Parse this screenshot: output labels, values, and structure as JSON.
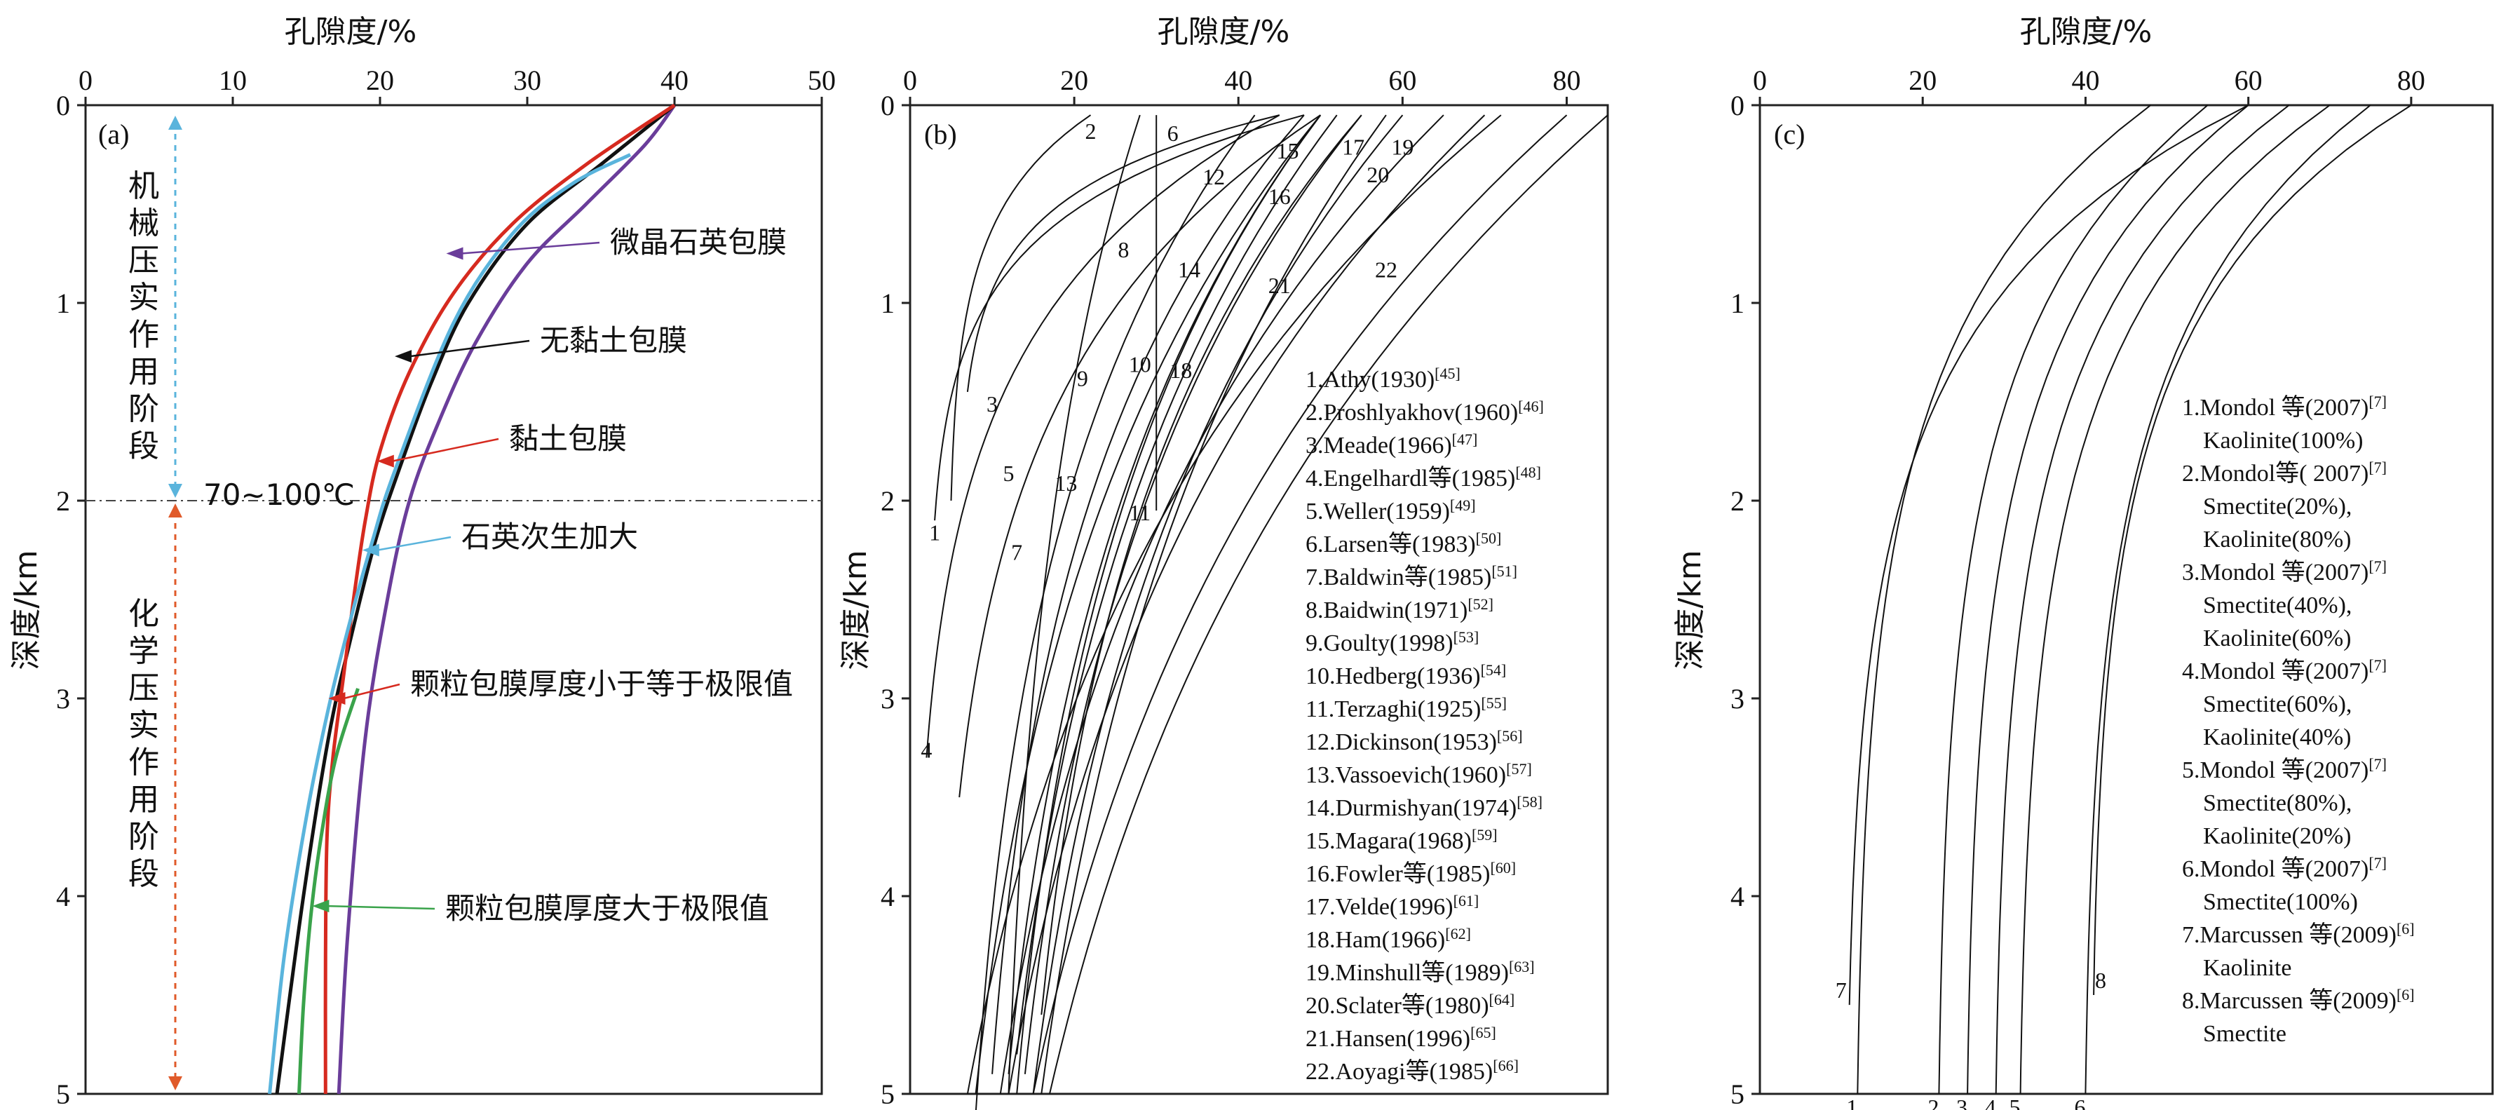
{
  "chart_data": [
    {
      "panel": "(a)",
      "type": "line",
      "xlabel": "孔隙度/%",
      "ylabel": "深度/km",
      "xlim": [
        0,
        50
      ],
      "ylim": [
        0,
        5
      ],
      "xticks": [
        "0",
        "10",
        "20",
        "30",
        "40",
        "50"
      ],
      "yticks": [
        "0",
        "1",
        "2",
        "3",
        "4",
        "5"
      ],
      "threshold_label": "70~100℃",
      "threshold_depth": 2,
      "stage_upper": "机械压实作用阶段",
      "stage_lower": "化学压实作用阶段",
      "series": [
        {
          "name": "微晶石英包膜",
          "color": "#6a3d9a",
          "x": [
            40,
            38,
            34,
            30,
            26.5,
            24,
            22,
            20.5,
            19,
            17.8,
            17.2
          ],
          "y": [
            0,
            0.2,
            0.5,
            0.8,
            1.2,
            1.6,
            2.0,
            2.5,
            3.2,
            4.2,
            5.0
          ]
        },
        {
          "name": "无黏土包膜",
          "color": "#111111",
          "x": [
            40,
            35,
            30,
            26,
            23.5,
            21.5,
            19.7,
            18,
            16.5,
            14.8,
            13
          ],
          "y": [
            0,
            0.3,
            0.6,
            1.0,
            1.4,
            1.8,
            2.2,
            2.7,
            3.2,
            4.0,
            5.0
          ]
        },
        {
          "name": "黏土包膜",
          "color": "#d62a1f",
          "x": [
            40,
            34,
            29,
            25,
            22,
            20,
            19,
            18.2,
            17.5,
            16.8,
            16.4,
            16.3,
            16.3
          ],
          "y": [
            0,
            0.3,
            0.6,
            0.95,
            1.35,
            1.75,
            2.1,
            2.5,
            2.9,
            3.3,
            3.7,
            4.3,
            5.0
          ]
        },
        {
          "name": "石英次生加大",
          "color": "#5ab4dc",
          "x": [
            37,
            33,
            29,
            25,
            21,
            19.5,
            18,
            16.5,
            15,
            13.5,
            12.5
          ],
          "y": [
            0.25,
            0.4,
            0.65,
            1.1,
            1.85,
            2.2,
            2.6,
            3.05,
            3.6,
            4.3,
            5.0
          ]
        },
        {
          "name": "颗粒包膜厚度小于等于极限值",
          "color": "#d62a1f",
          "x": [],
          "y": []
        },
        {
          "name": "颗粒包膜厚度大于极限值",
          "color": "#3aa34b",
          "x": [
            18.5,
            17,
            16,
            15.3,
            14.8,
            14.5
          ],
          "y": [
            2.95,
            3.3,
            3.7,
            4.1,
            4.55,
            5.0
          ]
        }
      ]
    },
    {
      "panel": "(b)",
      "type": "line",
      "xlabel": "孔隙度/%",
      "ylabel": "深度/km",
      "xlim": [
        0,
        85
      ],
      "ylim": [
        0,
        5
      ],
      "xticks": [
        "0",
        "20",
        "40",
        "60",
        "80"
      ],
      "yticks": [
        "0",
        "1",
        "2",
        "3",
        "4",
        "5"
      ],
      "legend": [
        "1.Athy(1930)[45]",
        "2.Proshlyakhov(1960)[46]",
        "3.Meade(1966)[47]",
        "4.Engelhardl等(1985)[48]",
        "5.Weller(1959)[49]",
        "6.Larsen等(1983)[50]",
        "7.Baldwin等(1985)[51]",
        "8.Baidwin(1971)[52]",
        "9.Goulty(1998)[53]",
        "10.Hedberg(1936)[54]",
        "11.Terzaghi(1925)[55]",
        "12.Dickinson(1953)[56]",
        "13.Vassoevich(1960)[57]",
        "14.Durmishyan(1974)[58]",
        "15.Magara(1968)[59]",
        "16.Fowler等(1985)[60]",
        "17.Velde(1996)[61]",
        "18.Ham(1966)[62]",
        "19.Minshull等(1989)[63]",
        "20.Sclater等(1980)[64]",
        "21.Hansen(1996)[65]",
        "22.Aoyagi等(1985)[66]"
      ],
      "series": [
        {
          "name": "1",
          "x0": 48,
          "d": 0.8,
          "xe": 3,
          "ye": 2.1
        },
        {
          "name": "2",
          "x0": 22,
          "d": 0.8,
          "xe": 5,
          "ye": 2.0
        },
        {
          "name": "3",
          "x0": 45,
          "d": 0.9,
          "xe": 7,
          "ye": 1.45
        },
        {
          "name": "4",
          "x0": 45,
          "d": 1.0,
          "xe": 2,
          "ye": 3.3
        },
        {
          "name": "5",
          "x0": 50,
          "d": 1.2,
          "xe": 6,
          "ye": 3.5
        },
        {
          "name": "6",
          "x0": 42,
          "d": 1.3,
          "xe": 8,
          "ye": 5.1
        },
        {
          "name": "7",
          "x0": 48,
          "d": 1.3,
          "xe": 10,
          "ye": 4.9
        },
        {
          "name": "8",
          "x0": 28,
          "d": 1.5,
          "xe": 12,
          "ye": 5.0
        },
        {
          "name": "9",
          "x0": 50,
          "d": 1.5,
          "xe": 13,
          "ye": 5.0
        },
        {
          "name": "10",
          "x0": 55,
          "d": 1.6,
          "xe": 14,
          "ye": 4.9
        },
        {
          "name": "11",
          "x0": 30,
          "d": 1.8,
          "xe": 30,
          "ye": 2.05
        },
        {
          "name": "12",
          "x0": 50,
          "d": 1.6,
          "xe": 8,
          "ye": 5.0
        },
        {
          "name": "13",
          "x0": 52,
          "d": 1.7,
          "xe": 13,
          "ye": 4.8
        },
        {
          "name": "14",
          "x0": 50,
          "d": 1.6,
          "xe": 12,
          "ye": 4.9
        },
        {
          "name": "15",
          "x0": 55,
          "d": 1.5,
          "xe": 16,
          "ye": 4.6
        },
        {
          "name": "16",
          "x0": 60,
          "d": 1.7,
          "xe": 15,
          "ye": 5.0
        },
        {
          "name": "17",
          "x0": 65,
          "d": 1.7,
          "xe": 11,
          "ye": 5.0
        },
        {
          "name": "18",
          "x0": 58,
          "d": 1.9,
          "xe": 16,
          "ye": 5.0
        },
        {
          "name": "19",
          "x0": 70,
          "d": 1.8,
          "xe": 12,
          "ye": 5.0
        },
        {
          "name": "20",
          "x0": 72,
          "d": 1.7,
          "xe": 7,
          "ye": 5.0
        },
        {
          "name": "21",
          "x0": 80,
          "d": 1.9,
          "xe": 15,
          "ye": 5.0
        },
        {
          "name": "22",
          "x0": 85,
          "d": 2.0,
          "xe": 17,
          "ye": 5.0
        }
      ]
    },
    {
      "panel": "(c)",
      "type": "line",
      "xlabel": "孔隙度/%",
      "ylabel": "深度/km",
      "xlim": [
        0,
        90
      ],
      "ylim": [
        0,
        5
      ],
      "xticks": [
        "0",
        "20",
        "40",
        "60",
        "80"
      ],
      "yticks": [
        "0",
        "1",
        "2",
        "3",
        "4",
        "5"
      ],
      "legend": [
        {
          "head": "1.Mondol 等(2007)",
          "sup": "[7]",
          "lines": [
            "Kaolinite(100%)"
          ]
        },
        {
          "head": "2.Mondol等( 2007)",
          "sup": "[7]",
          "lines": [
            "Smectite(20%),",
            "Kaolinite(80%)"
          ]
        },
        {
          "head": "3.Mondol 等(2007)",
          "sup": "[7]",
          "lines": [
            "Smectite(40%),",
            "Kaolinite(60%)"
          ]
        },
        {
          "head": "4.Mondol 等(2007)",
          "sup": "[7]",
          "lines": [
            "Smectite(60%),",
            "Kaolinite(40%)"
          ]
        },
        {
          "head": "5.Mondol 等(2007)",
          "sup": "[7]",
          "lines": [
            "Smectite(80%),",
            "Kaolinite(20%)"
          ]
        },
        {
          "head": "6.Mondol 等(2007)",
          "sup": "[7]",
          "lines": [
            "Smectite(100%)"
          ]
        },
        {
          "head": "7.Marcussen 等(2009)",
          "sup": "[6]",
          "lines": [
            "Kaolinite"
          ]
        },
        {
          "head": "8.Marcussen 等(2009)",
          "sup": "[6]",
          "lines": [
            "Smectite"
          ]
        }
      ],
      "series": [
        {
          "name": "1",
          "x0": 48,
          "xe": 12,
          "ye": 5.0
        },
        {
          "name": "2",
          "x0": 55,
          "xe": 22,
          "ye": 5.0
        },
        {
          "name": "3",
          "x0": 60,
          "xe": 25.5,
          "ye": 5.0
        },
        {
          "name": "4",
          "x0": 65,
          "xe": 29,
          "ye": 5.0
        },
        {
          "name": "5",
          "x0": 70,
          "xe": 32,
          "ye": 5.0
        },
        {
          "name": "6",
          "x0": 75,
          "xe": 40,
          "ye": 5.0
        },
        {
          "name": "7",
          "x0": 60,
          "xe": 11,
          "ye": 4.55
        },
        {
          "name": "8",
          "x0": 80,
          "xe": 41,
          "ye": 4.5
        }
      ]
    }
  ]
}
